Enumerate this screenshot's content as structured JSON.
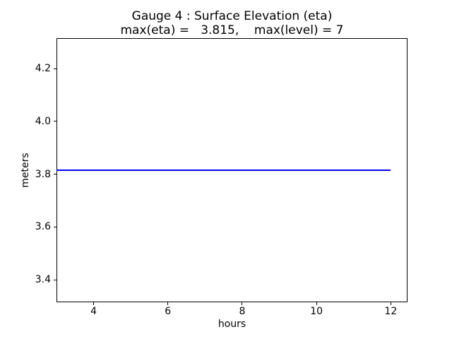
{
  "figure": {
    "background": "#ffffff",
    "text_color": "#000000",
    "spine_color": "#000000"
  },
  "chart_data": {
    "type": "line",
    "title": "Gauge 4 : Surface Elevation (eta)",
    "subtitle": "max(eta) =   3.815,    max(level) = 7",
    "xlabel": "hours",
    "ylabel": "meters",
    "xlim": [
      3.0,
      12.45
    ],
    "ylim": [
      3.315,
      4.315
    ],
    "xticks": [
      4,
      6,
      8,
      10,
      12
    ],
    "xtick_labels": [
      "4",
      "6",
      "8",
      "10",
      "12"
    ],
    "yticks": [
      3.4,
      3.6,
      3.8,
      4.0,
      4.2
    ],
    "ytick_labels": [
      "3.4",
      "3.6",
      "3.8",
      "4.0",
      "4.2"
    ],
    "grid": false,
    "legend": null,
    "max_eta": 3.815,
    "max_level": 7,
    "series": [
      {
        "name": "eta",
        "x": [
          3.0,
          12.0
        ],
        "y": [
          3.815,
          3.815
        ],
        "color": "#0000ff",
        "linewidth": 2
      }
    ]
  }
}
